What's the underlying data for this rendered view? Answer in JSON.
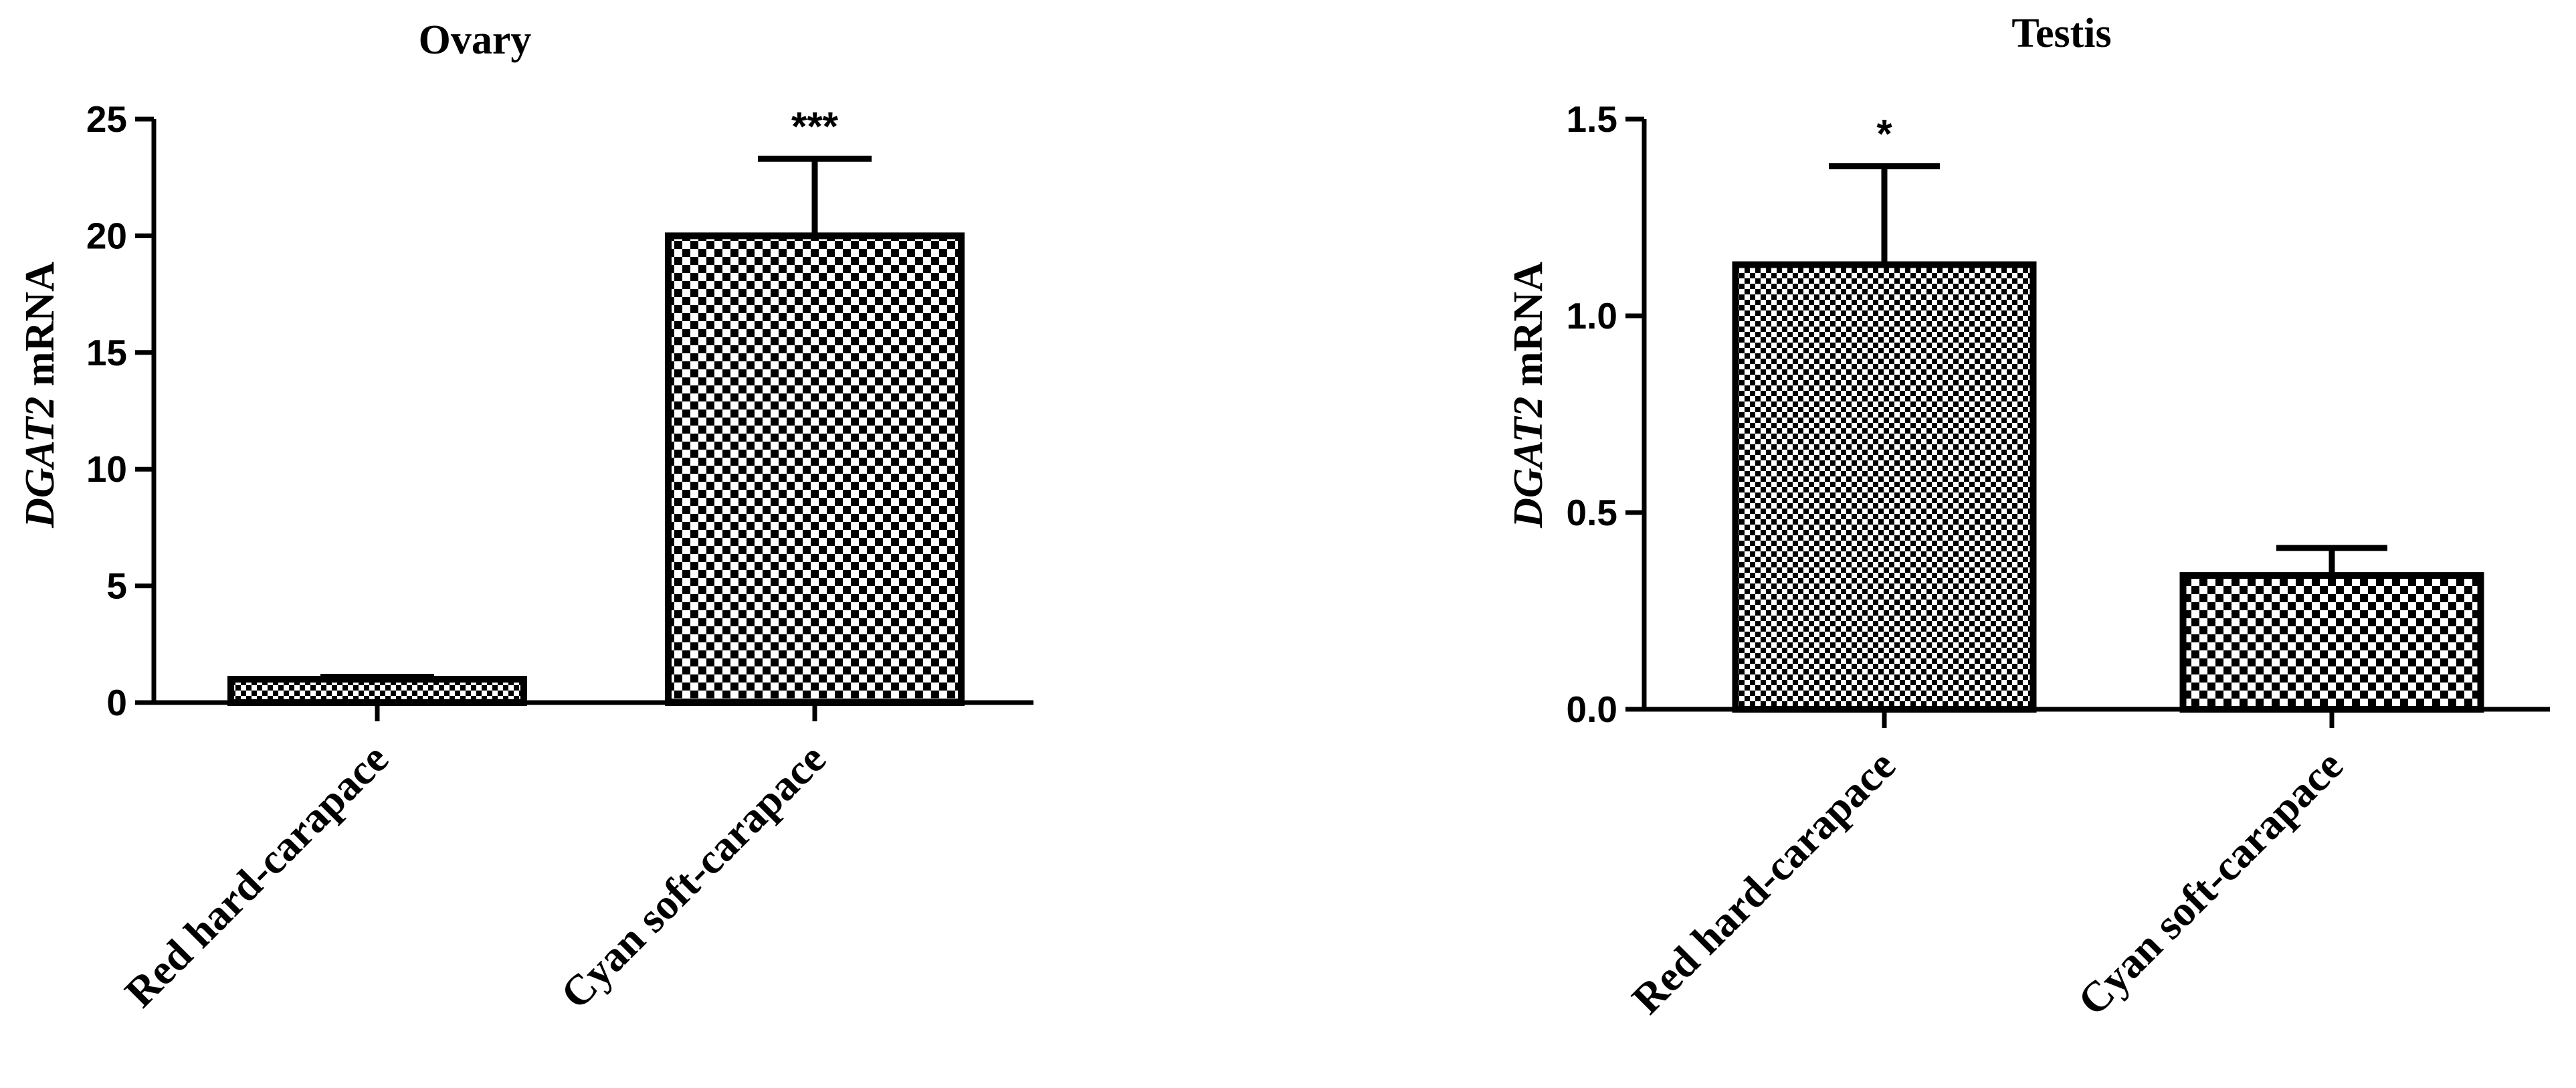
{
  "chart_data": [
    {
      "type": "bar",
      "title": "Ovary",
      "ylabel_gene": "DGAT2",
      "ylabel_unit": "mRNA",
      "xlabel": "",
      "categories": [
        "Red hard-carapace",
        "Cyan soft-carapace"
      ],
      "values": [
        1.0,
        20.0
      ],
      "errors": [
        0.1,
        3.3
      ],
      "significance": [
        "",
        "***"
      ],
      "bar_patterns": [
        "fine-checker",
        "coarse-checker"
      ],
      "ylim": [
        0,
        25
      ],
      "yticks": [
        0,
        5,
        10,
        15,
        20,
        25
      ],
      "ytick_labels": [
        "0",
        "5",
        "10",
        "15",
        "20",
        "25"
      ],
      "grid": false,
      "legend": "none"
    },
    {
      "type": "bar",
      "title": "Testis",
      "ylabel_gene": "DGAT2",
      "ylabel_unit": "mRNA",
      "xlabel": "",
      "categories": [
        "Red hard-carapace",
        "Cyan soft-carapace"
      ],
      "values": [
        1.13,
        0.34
      ],
      "errors": [
        0.25,
        0.07
      ],
      "significance": [
        "*",
        ""
      ],
      "bar_patterns": [
        "fine-checker",
        "coarse-checker"
      ],
      "ylim": [
        0,
        1.5
      ],
      "yticks": [
        0,
        0.5,
        1.0,
        1.5
      ],
      "ytick_labels": [
        "0.0",
        "0.5",
        "1.0",
        "1.5"
      ],
      "grid": false,
      "legend": "none"
    }
  ],
  "colors": {
    "ink": "#000000",
    "background": "#ffffff"
  }
}
